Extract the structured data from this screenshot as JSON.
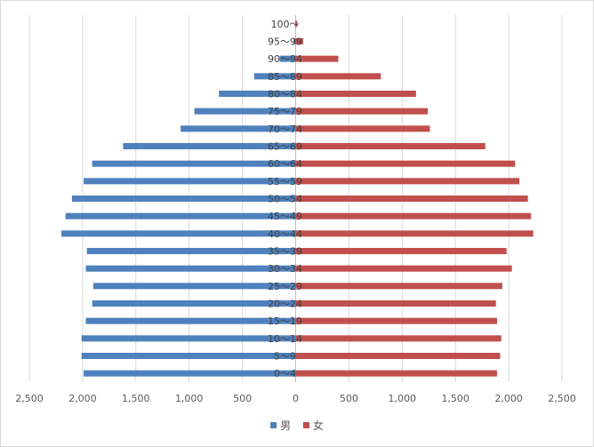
{
  "colors": {
    "male": "#4f81bd",
    "female": "#c0504d",
    "grid": "#d9d9d9",
    "axis": "#bfbfbf"
  },
  "chart_data": {
    "type": "bar",
    "orientation": "horizontal",
    "layout": "population-pyramid",
    "title": "",
    "xlabel": "",
    "ylabel": "",
    "xlim": [
      -2500,
      2500
    ],
    "grid": true,
    "legend_position": "bottom",
    "x_ticks": [
      "2,500",
      "2,000",
      "1,500",
      "1,000",
      "500",
      "0",
      "500",
      "1,000",
      "1,500",
      "2,000",
      "2,500"
    ],
    "categories": [
      "0～4",
      "5～9",
      "10～14",
      "15～19",
      "20～24",
      "25～29",
      "30～34",
      "35～39",
      "40～44",
      "45～49",
      "50～54",
      "55～59",
      "60～64",
      "65～69",
      "70～74",
      "75～79",
      "80～84",
      "85～89",
      "90～94",
      "95～99",
      "100～"
    ],
    "series": [
      {
        "name": "男",
        "side": "left",
        "values": [
          1990,
          2010,
          2010,
          1970,
          1910,
          1900,
          1970,
          1960,
          2200,
          2160,
          2100,
          1990,
          1910,
          1620,
          1080,
          950,
          720,
          390,
          150,
          20,
          5
        ]
      },
      {
        "name": "女",
        "side": "right",
        "values": [
          1890,
          1920,
          1930,
          1890,
          1880,
          1940,
          2030,
          1980,
          2230,
          2210,
          2180,
          2100,
          2060,
          1780,
          1260,
          1240,
          1130,
          800,
          400,
          70,
          15
        ]
      }
    ]
  }
}
